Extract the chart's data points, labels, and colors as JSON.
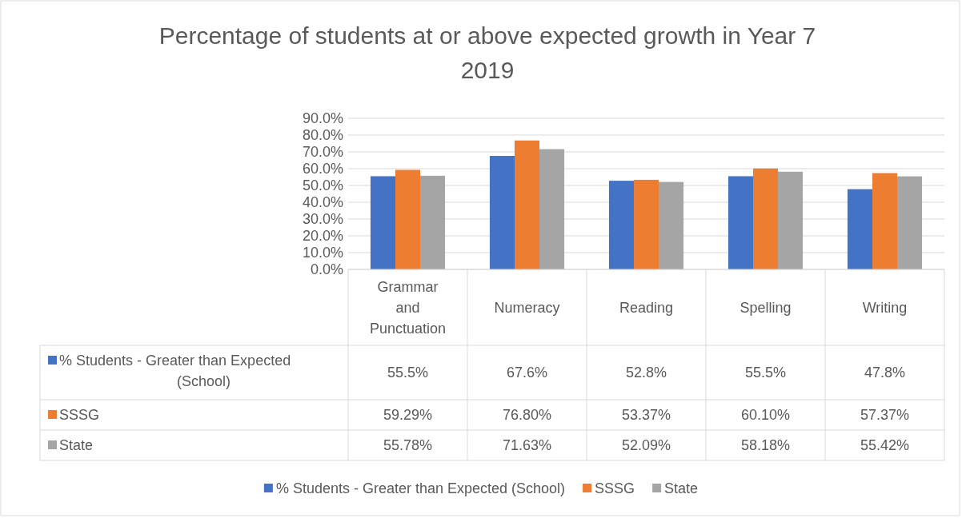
{
  "chart_data": {
    "type": "bar",
    "title": "Percentage of students at or above expected growth in Year 7 2019",
    "categories": [
      "Grammar and Punctuation",
      "Numeracy",
      "Reading",
      "Spelling",
      "Writing"
    ],
    "series": [
      {
        "name": "% Students - Greater than Expected (School)",
        "color": "#4472c4",
        "values": [
          55.5,
          67.6,
          52.8,
          55.5,
          47.8
        ],
        "value_labels": [
          "55.5%",
          "67.6%",
          "52.8%",
          "55.5%",
          "47.8%"
        ]
      },
      {
        "name": "SSSG",
        "color": "#ed7d31",
        "values": [
          59.29,
          76.8,
          53.37,
          60.1,
          57.37
        ],
        "value_labels": [
          "59.29%",
          "76.80%",
          "53.37%",
          "60.10%",
          "57.37%"
        ]
      },
      {
        "name": "State",
        "color": "#a5a5a5",
        "values": [
          55.78,
          71.63,
          52.09,
          58.18,
          55.42
        ],
        "value_labels": [
          "55.78%",
          "71.63%",
          "52.09%",
          "58.18%",
          "55.42%"
        ]
      }
    ],
    "ylim": [
      0,
      90
    ],
    "yticks": [
      {
        "value": 0,
        "label": "0.0%"
      },
      {
        "value": 10,
        "label": "10.0%"
      },
      {
        "value": 20,
        "label": "20.0%"
      },
      {
        "value": 30,
        "label": "30.0%"
      },
      {
        "value": 40,
        "label": "40.0%"
      },
      {
        "value": 50,
        "label": "50.0%"
      },
      {
        "value": 60,
        "label": "60.0%"
      },
      {
        "value": 70,
        "label": "70.0%"
      },
      {
        "value": 80,
        "label": "80.0%"
      },
      {
        "value": 90,
        "label": "90.0%"
      }
    ],
    "grid": "y",
    "legend": "bottom"
  }
}
